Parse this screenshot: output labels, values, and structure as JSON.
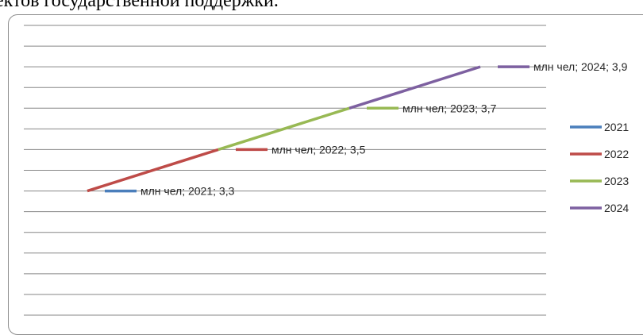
{
  "heading": "ектов государственной поддержки.",
  "chart_data": {
    "type": "line",
    "title": "",
    "xlabel": "",
    "ylabel": "",
    "categories": [
      "2021",
      "2022",
      "2023",
      "2024"
    ],
    "unit": "млн чел",
    "ylim": [
      2.7,
      4.1
    ],
    "grid": true,
    "legend_position": "right",
    "series": [
      {
        "name": "2021",
        "color": "#4a7ebb",
        "points": [
          [
            0,
            3.3
          ]
        ],
        "label": "млн чел; 2021; 3,3"
      },
      {
        "name": "2022",
        "color": "#be4b48",
        "points": [
          [
            0,
            3.3
          ],
          [
            1,
            3.5
          ]
        ],
        "label": "млн чел; 2022; 3,5"
      },
      {
        "name": "2023",
        "color": "#98b954",
        "points": [
          [
            1,
            3.5
          ],
          [
            2,
            3.7
          ]
        ],
        "label": "млн чел; 2023; 3,7"
      },
      {
        "name": "2024",
        "color": "#7d60a0",
        "points": [
          [
            2,
            3.7
          ],
          [
            3,
            3.9
          ]
        ],
        "label": "млн чел; 2024; 3,9"
      }
    ]
  }
}
